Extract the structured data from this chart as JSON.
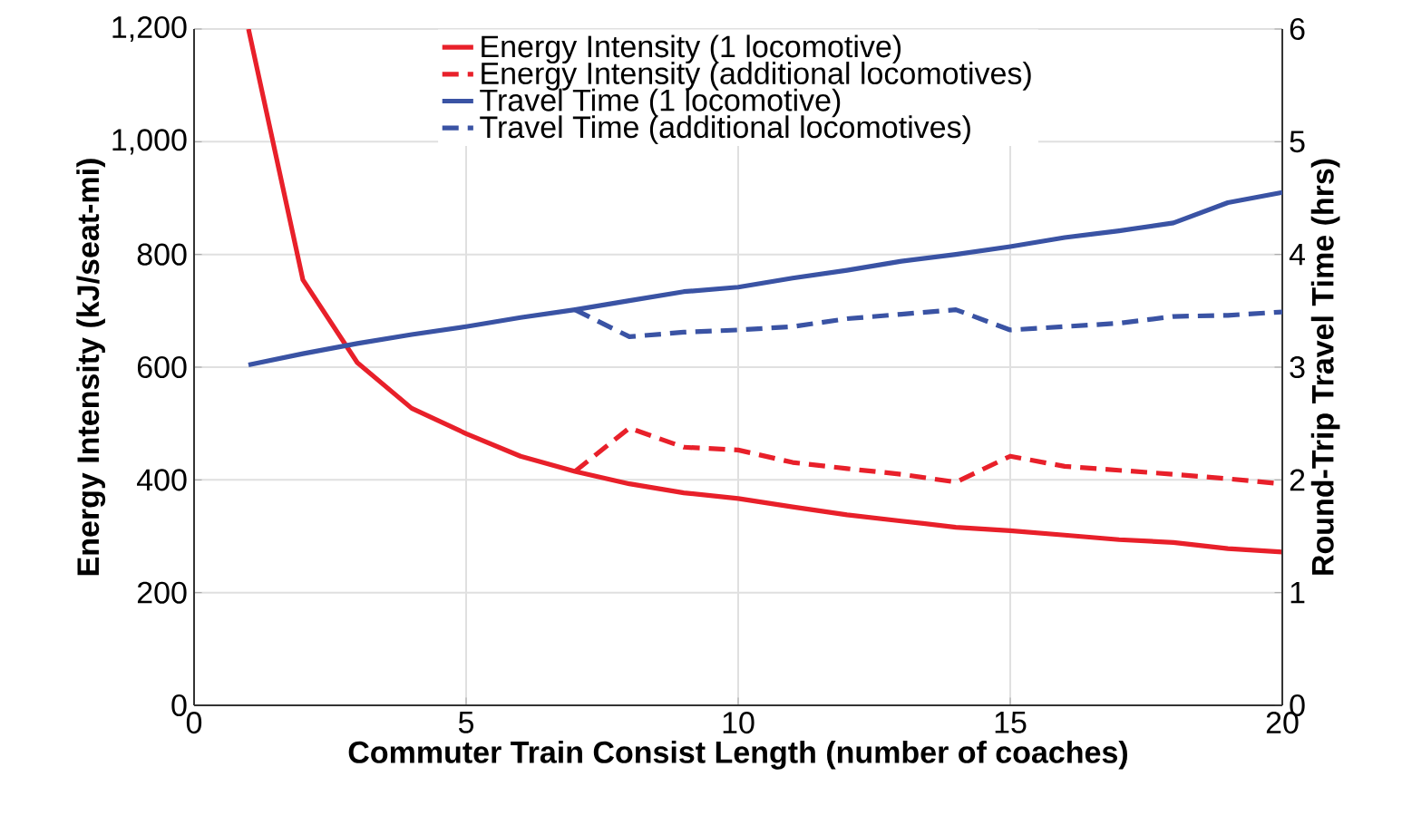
{
  "chart_data": {
    "type": "line",
    "xlabel": "Commuter Train Consist Length (number of coaches)",
    "ylabel": "Energy Intensity (kJ/seat-mi)",
    "y2label": "Round-Trip Travel Time (hrs)",
    "xlim": [
      0,
      20
    ],
    "xticks": [
      0,
      5,
      10,
      15,
      20
    ],
    "ylim": [
      0,
      1200
    ],
    "yticks": [
      0,
      200,
      400,
      600,
      800,
      {
        "value": 1000,
        "label": "1,000"
      },
      {
        "value": 1200,
        "label": "1,200"
      }
    ],
    "y2lim": [
      0,
      6
    ],
    "y2ticks": [
      0,
      1,
      2,
      3,
      4,
      5,
      6
    ],
    "grid": true,
    "legend": "top",
    "series": [
      {
        "name": "Energy Intensity (1 locomotive)",
        "color": "#e8202a",
        "line_style": "solid",
        "axis": "y",
        "x": [
          1,
          2,
          3,
          4,
          5,
          6,
          7,
          8,
          9,
          10,
          11,
          12,
          13,
          14,
          15,
          16,
          17,
          18,
          19,
          20
        ],
        "values": [
          1200,
          755,
          608,
          527,
          482,
          442,
          415,
          393,
          377,
          367,
          352,
          338,
          327,
          316,
          310,
          302,
          294,
          289,
          278,
          272
        ]
      },
      {
        "name": "Energy Intensity (additional locomotives)",
        "color": "#e8202a",
        "line_style": "dashed",
        "axis": "y",
        "x": [
          7,
          8,
          9,
          10,
          11,
          12,
          13,
          14,
          15,
          16,
          17,
          18,
          19,
          20
        ],
        "values": [
          415,
          492,
          458,
          453,
          431,
          420,
          410,
          396,
          442,
          424,
          417,
          410,
          402,
          393
        ]
      },
      {
        "name": "Travel Time (1 locomotive)",
        "color": "#3a53a4",
        "line_style": "solid",
        "axis": "y2",
        "x": [
          1,
          2,
          3,
          4,
          5,
          6,
          7,
          8,
          9,
          10,
          11,
          12,
          13,
          14,
          15,
          16,
          17,
          18,
          19,
          20
        ],
        "values": [
          3.02,
          3.12,
          3.21,
          3.29,
          3.36,
          3.44,
          3.51,
          3.59,
          3.67,
          3.71,
          3.79,
          3.86,
          3.94,
          4.0,
          4.07,
          4.15,
          4.21,
          4.28,
          4.46,
          4.55
        ]
      },
      {
        "name": "Travel Time (additional locomotives)",
        "color": "#3a53a4",
        "line_style": "dashed",
        "axis": "y2",
        "x": [
          7,
          8,
          9,
          10,
          11,
          12,
          13,
          14,
          15,
          16,
          17,
          18,
          19,
          20
        ],
        "values": [
          3.51,
          3.27,
          3.31,
          3.33,
          3.36,
          3.43,
          3.47,
          3.51,
          3.33,
          3.36,
          3.39,
          3.45,
          3.46,
          3.49
        ]
      }
    ]
  }
}
